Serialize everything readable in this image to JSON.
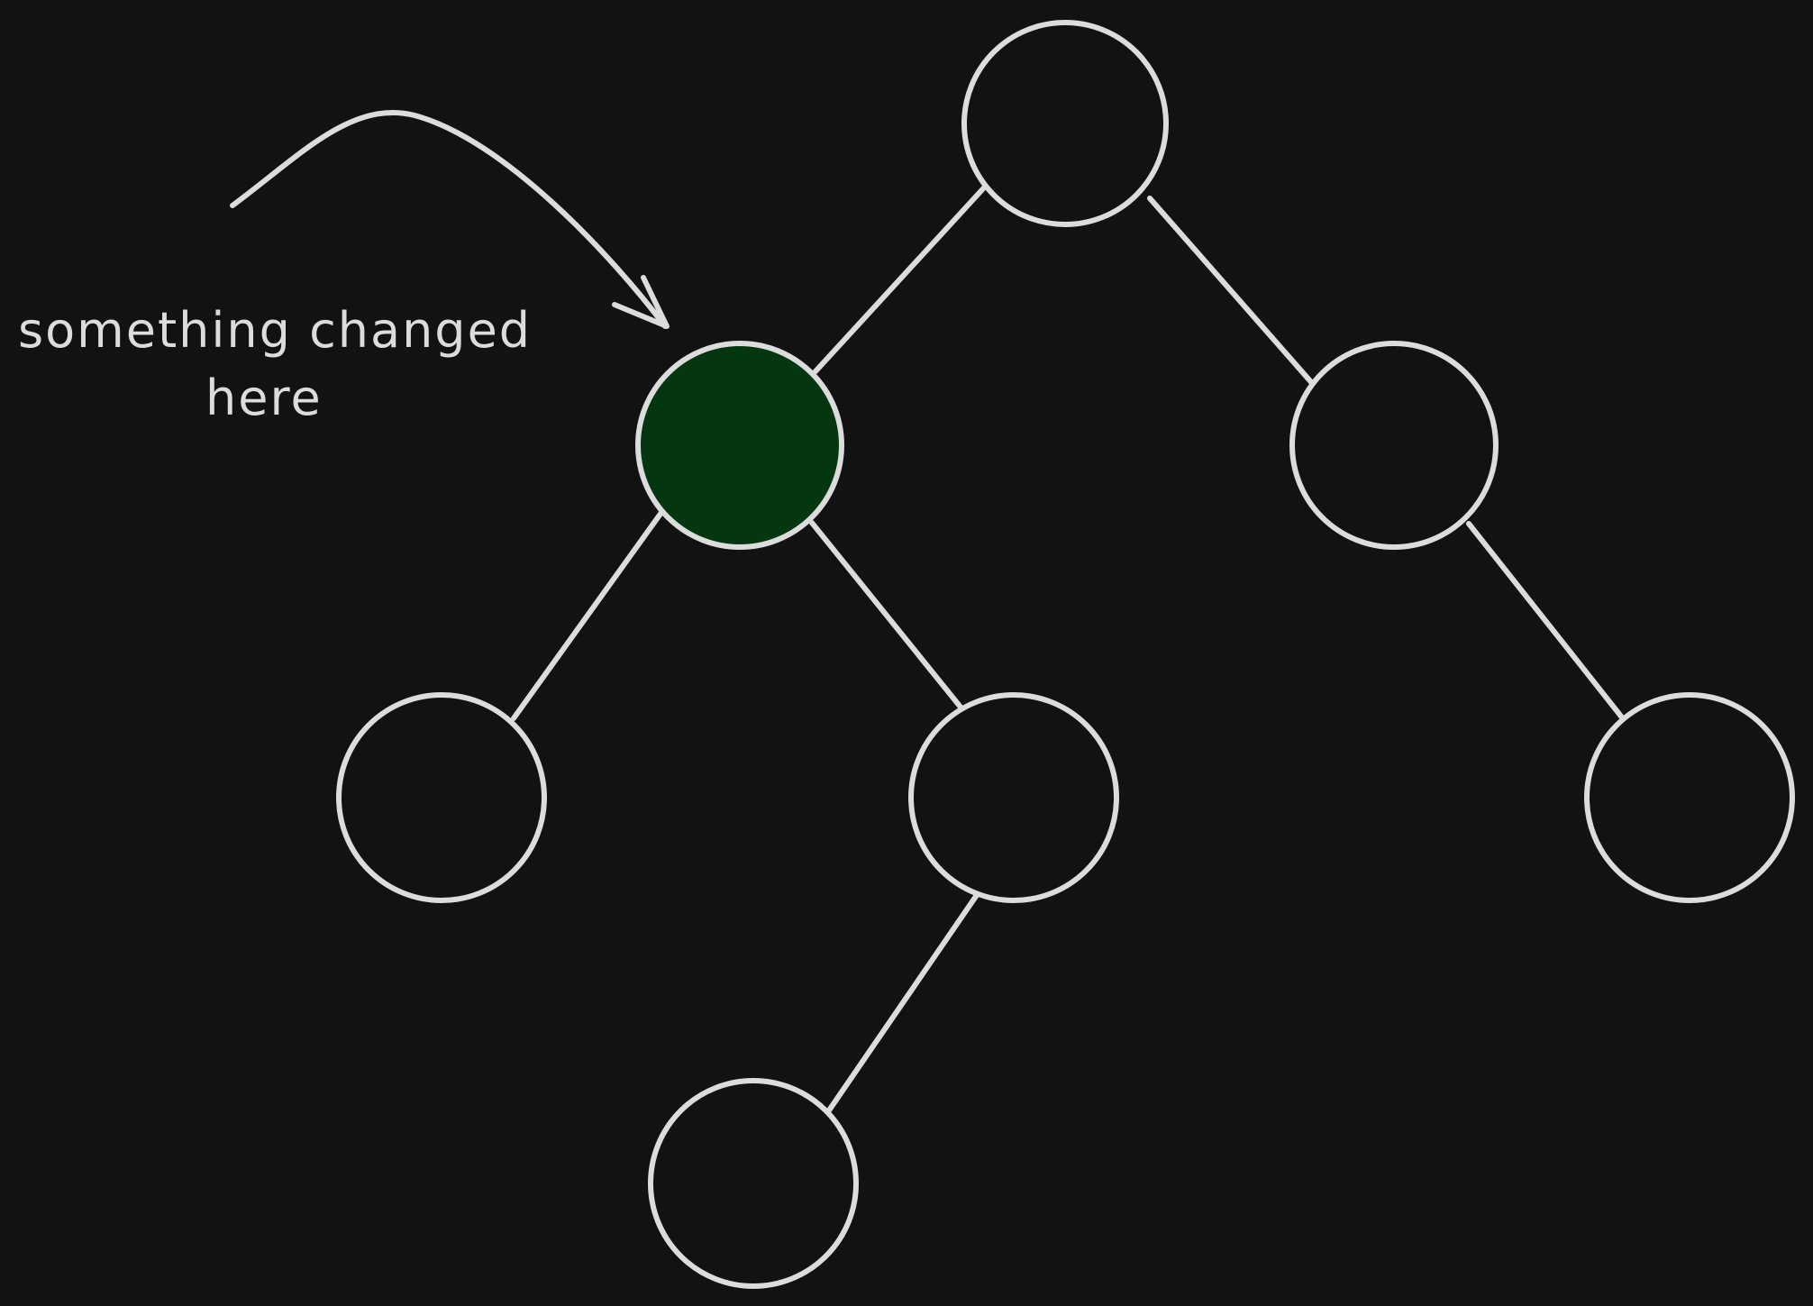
{
  "annotation": {
    "line1": "something changed",
    "line2": "here"
  },
  "colors": {
    "background": "#121212",
    "stroke": "#dcdcdc",
    "highlight_fill": "#043610",
    "node_fill": "#121212"
  },
  "tree": {
    "highlighted_node": "left-child"
  }
}
